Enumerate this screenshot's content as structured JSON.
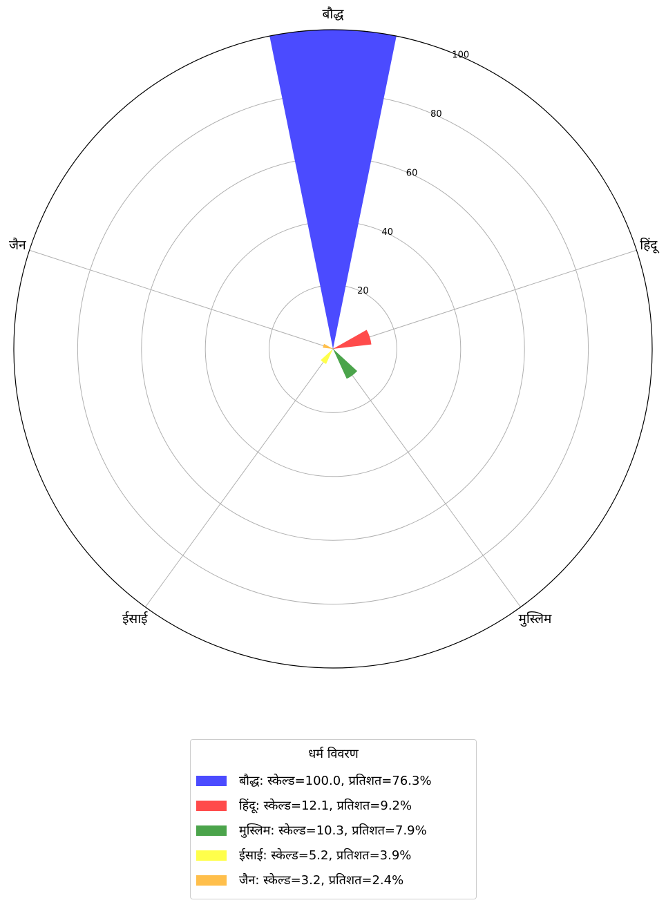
{
  "chart_data": {
    "type": "polar-bar",
    "title": "",
    "categories": [
      "बौद्ध",
      "हिंदू",
      "मुस्लिम",
      "ईसाई",
      "जैन"
    ],
    "values": [
      100.0,
      12.1,
      10.3,
      5.2,
      3.2
    ],
    "percentages": [
      76.3,
      9.2,
      7.9,
      3.9,
      2.4
    ],
    "colors": [
      "#4b4bff",
      "#ff4b4b",
      "#4ba44b",
      "#ffff4b",
      "#ffbf4b"
    ],
    "rlim": [
      0,
      100
    ],
    "r_ticks": [
      "20",
      "40",
      "60",
      "80",
      "100"
    ],
    "grid": true,
    "legend": {
      "title": "धर्म विवरण",
      "placement": "bottom-center",
      "items": [
        "बौद्ध: स्केल्ड=100.0, प्रतिशत=76.3%",
        "हिंदू: स्केल्ड=12.1, प्रतिशत=9.2%",
        "मुस्लिम: स्केल्ड=10.3, प्रतिशत=7.9%",
        "ईसाई: स्केल्ड=5.2, प्रतिशत=3.9%",
        "जैन: स्केल्ड=3.2, प्रतिशत=2.4%"
      ]
    }
  }
}
